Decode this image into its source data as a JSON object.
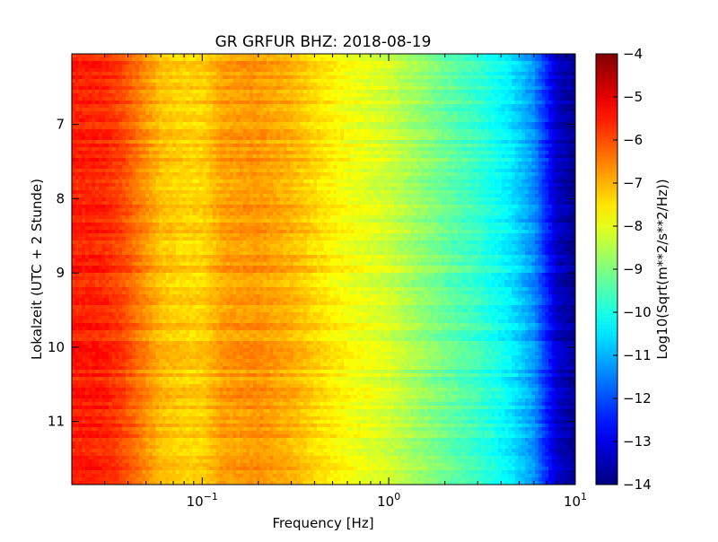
{
  "chart_data": {
    "type": "heatmap",
    "title": "GR GRFUR BHZ: 2018-08-19",
    "xlabel": "Frequency [Hz]",
    "ylabel": "Lokalzeit (UTC + 2 Stunde)",
    "xscale": "log",
    "xlim": [
      0.02,
      10
    ],
    "x_ticks": [
      {
        "value": 0.1,
        "base": "10",
        "exp": "−1"
      },
      {
        "value": 1,
        "base": "10",
        "exp": "0"
      },
      {
        "value": 10,
        "base": "10",
        "exp": "1"
      }
    ],
    "ylim": [
      6.05,
      11.85
    ],
    "y_inverted": true,
    "y_ticks": [
      7,
      8,
      9,
      10,
      11
    ],
    "y_tick_labels": [
      "7",
      "8",
      "9",
      "10",
      "11"
    ],
    "colorbar": {
      "label": "Log10(Sqrt(m**2/s**2/Hz))",
      "range": [
        -14,
        -4
      ],
      "ticks": [
        -4,
        -5,
        -6,
        -7,
        -8,
        -9,
        -10,
        -11,
        -12,
        -13,
        -14
      ],
      "tick_labels": [
        "−4",
        "−5",
        "−6",
        "−7",
        "−8",
        "−9",
        "−10",
        "−11",
        "−12",
        "−13",
        "−14"
      ],
      "colormap": "jet"
    },
    "value_profile": {
      "description_free": true,
      "frequency_hz": [
        0.02,
        0.03,
        0.037,
        0.06,
        0.08,
        0.1,
        0.13,
        0.2,
        0.3,
        0.45,
        0.6,
        1.0,
        2.0,
        3.0,
        4.5,
        6.0,
        8.0,
        10.0
      ],
      "level": [
        -5.5,
        -5.6,
        -5.9,
        -7.1,
        -7.3,
        -7.3,
        -6.8,
        -6.7,
        -7.0,
        -7.5,
        -7.8,
        -8.2,
        -9.2,
        -9.7,
        -10.4,
        -11.3,
        -13.3,
        -13.8
      ]
    }
  }
}
